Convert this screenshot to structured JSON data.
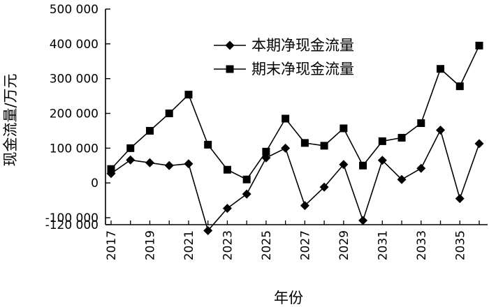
{
  "chart_data": {
    "type": "line",
    "xlabel": "年份",
    "ylabel": "现金流量/万元",
    "xlim": [
      2017,
      2036
    ],
    "ylim": [
      -120000,
      500000
    ],
    "yticks": [
      -120000,
      -100000,
      0,
      100000,
      200000,
      300000,
      400000,
      500000
    ],
    "ytick_labels": [
      "-120 000",
      "-100 000",
      "0",
      "100 000",
      "200 000",
      "300 000",
      "400 000",
      "500 000"
    ],
    "xticks": [
      2017,
      2019,
      2021,
      2023,
      2025,
      2027,
      2029,
      2031,
      2033,
      2035
    ],
    "xtick_labels": [
      "2017",
      "2019",
      "2021",
      "2023",
      "2025",
      "2027",
      "2029",
      "2031",
      "2033",
      "2035"
    ],
    "grid": false,
    "legend_position": "top-center",
    "x": [
      2017,
      2018,
      2019,
      2020,
      2021,
      2022,
      2023,
      2024,
      2025,
      2026,
      2027,
      2028,
      2029,
      2030,
      2031,
      2032,
      2033,
      2034,
      2035,
      2036
    ],
    "series": [
      {
        "name": "本期净现金流量",
        "marker": "diamond",
        "values": [
          27000,
          66000,
          58000,
          50000,
          55000,
          -137000,
          -73000,
          -32000,
          72000,
          100000,
          -65000,
          -12000,
          53000,
          -108000,
          65000,
          10000,
          42000,
          152000,
          -45000,
          113000
        ]
      },
      {
        "name": "期末净现金流量",
        "marker": "square",
        "values": [
          40000,
          100000,
          150000,
          200000,
          254000,
          110000,
          38000,
          10000,
          90000,
          185000,
          115000,
          107000,
          157000,
          50000,
          120000,
          130000,
          172000,
          328000,
          278000,
          395000
        ]
      }
    ]
  }
}
